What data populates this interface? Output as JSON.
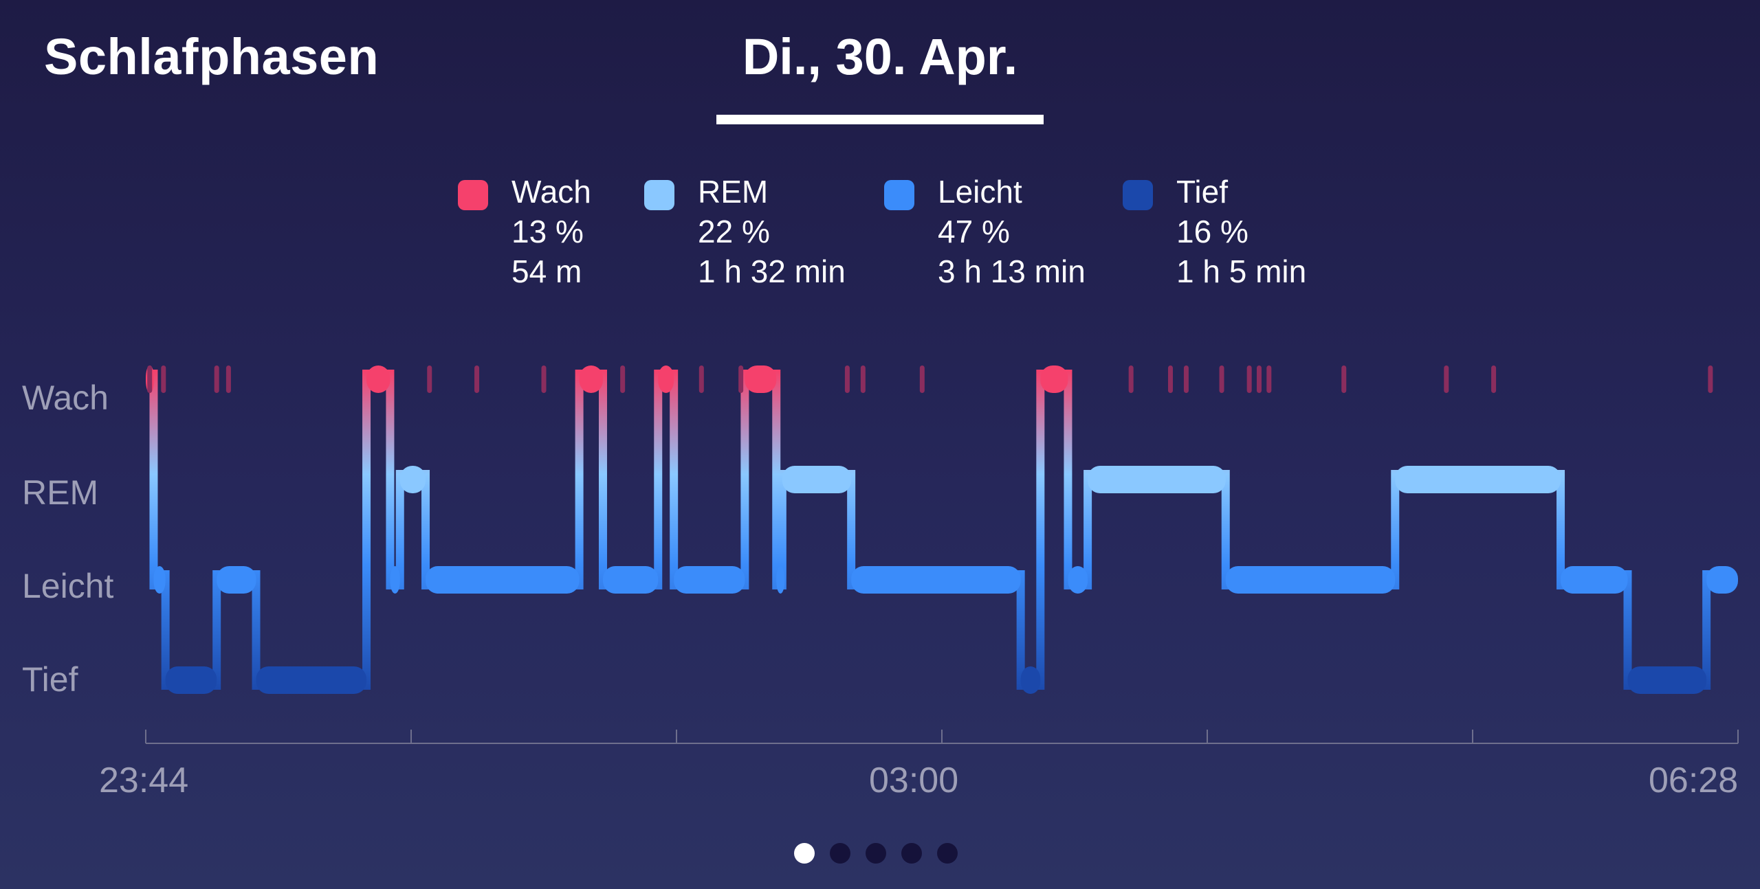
{
  "header": {
    "title": "Schlafphasen",
    "date": "Di., 30. Apr."
  },
  "legend": [
    {
      "name": "Wach",
      "percent": "13 %",
      "duration": "54 m",
      "color": "#f5416c"
    },
    {
      "name": "REM",
      "percent": "22 %",
      "duration": "1 h 32 min",
      "color": "#8ac8ff"
    },
    {
      "name": "Leicht",
      "percent": "47 %",
      "duration": "3 h 13 min",
      "color": "#3b8cfa"
    },
    {
      "name": "Tief",
      "percent": "16 %",
      "duration": "1 h 5 min",
      "color": "#1b48ab"
    }
  ],
  "pager": {
    "count": 5,
    "active": 0
  },
  "chart_data": {
    "type": "area",
    "title": "",
    "xlabel": "",
    "ylabel": "",
    "y_categories": [
      "Wach",
      "REM",
      "Leicht",
      "Tief"
    ],
    "x_tick_labels": [
      "23:44",
      "03:00",
      "06:28"
    ],
    "x_range_minutes": [
      0,
      404
    ],
    "segments": [
      {
        "start": 0,
        "end": 2,
        "stage": "Wach"
      },
      {
        "start": 2,
        "end": 5,
        "stage": "Leicht"
      },
      {
        "start": 5,
        "end": 18,
        "stage": "Tief"
      },
      {
        "start": 18,
        "end": 28,
        "stage": "Leicht"
      },
      {
        "start": 28,
        "end": 56,
        "stage": "Tief"
      },
      {
        "start": 56,
        "end": 62,
        "stage": "Wach"
      },
      {
        "start": 62,
        "end": 64.5,
        "stage": "Leicht"
      },
      {
        "start": 64.5,
        "end": 71,
        "stage": "REM"
      },
      {
        "start": 71,
        "end": 110,
        "stage": "Leicht"
      },
      {
        "start": 110,
        "end": 116,
        "stage": "Wach"
      },
      {
        "start": 116,
        "end": 130,
        "stage": "Leicht"
      },
      {
        "start": 130,
        "end": 134,
        "stage": "Wach"
      },
      {
        "start": 134,
        "end": 152,
        "stage": "Leicht"
      },
      {
        "start": 152,
        "end": 160,
        "stage": "Wach"
      },
      {
        "start": 160,
        "end": 161.5,
        "stage": "Leicht"
      },
      {
        "start": 161.5,
        "end": 179,
        "stage": "REM"
      },
      {
        "start": 179,
        "end": 222,
        "stage": "Leicht"
      },
      {
        "start": 222,
        "end": 227,
        "stage": "Tief"
      },
      {
        "start": 227,
        "end": 234,
        "stage": "Wach"
      },
      {
        "start": 234,
        "end": 239,
        "stage": "Leicht"
      },
      {
        "start": 239,
        "end": 274,
        "stage": "REM"
      },
      {
        "start": 274,
        "end": 317,
        "stage": "Leicht"
      },
      {
        "start": 317,
        "end": 359,
        "stage": "REM"
      },
      {
        "start": 359,
        "end": 376,
        "stage": "Leicht"
      },
      {
        "start": 376,
        "end": 396,
        "stage": "Tief"
      },
      {
        "start": 396,
        "end": 404,
        "stage": "Leicht"
      }
    ],
    "brief_awakenings_minutes": [
      1,
      4.5,
      18,
      21,
      72,
      84,
      101,
      121,
      141,
      151,
      178,
      182,
      197,
      250,
      260,
      264,
      273,
      280,
      282.5,
      285,
      304,
      330,
      342,
      397
    ]
  }
}
